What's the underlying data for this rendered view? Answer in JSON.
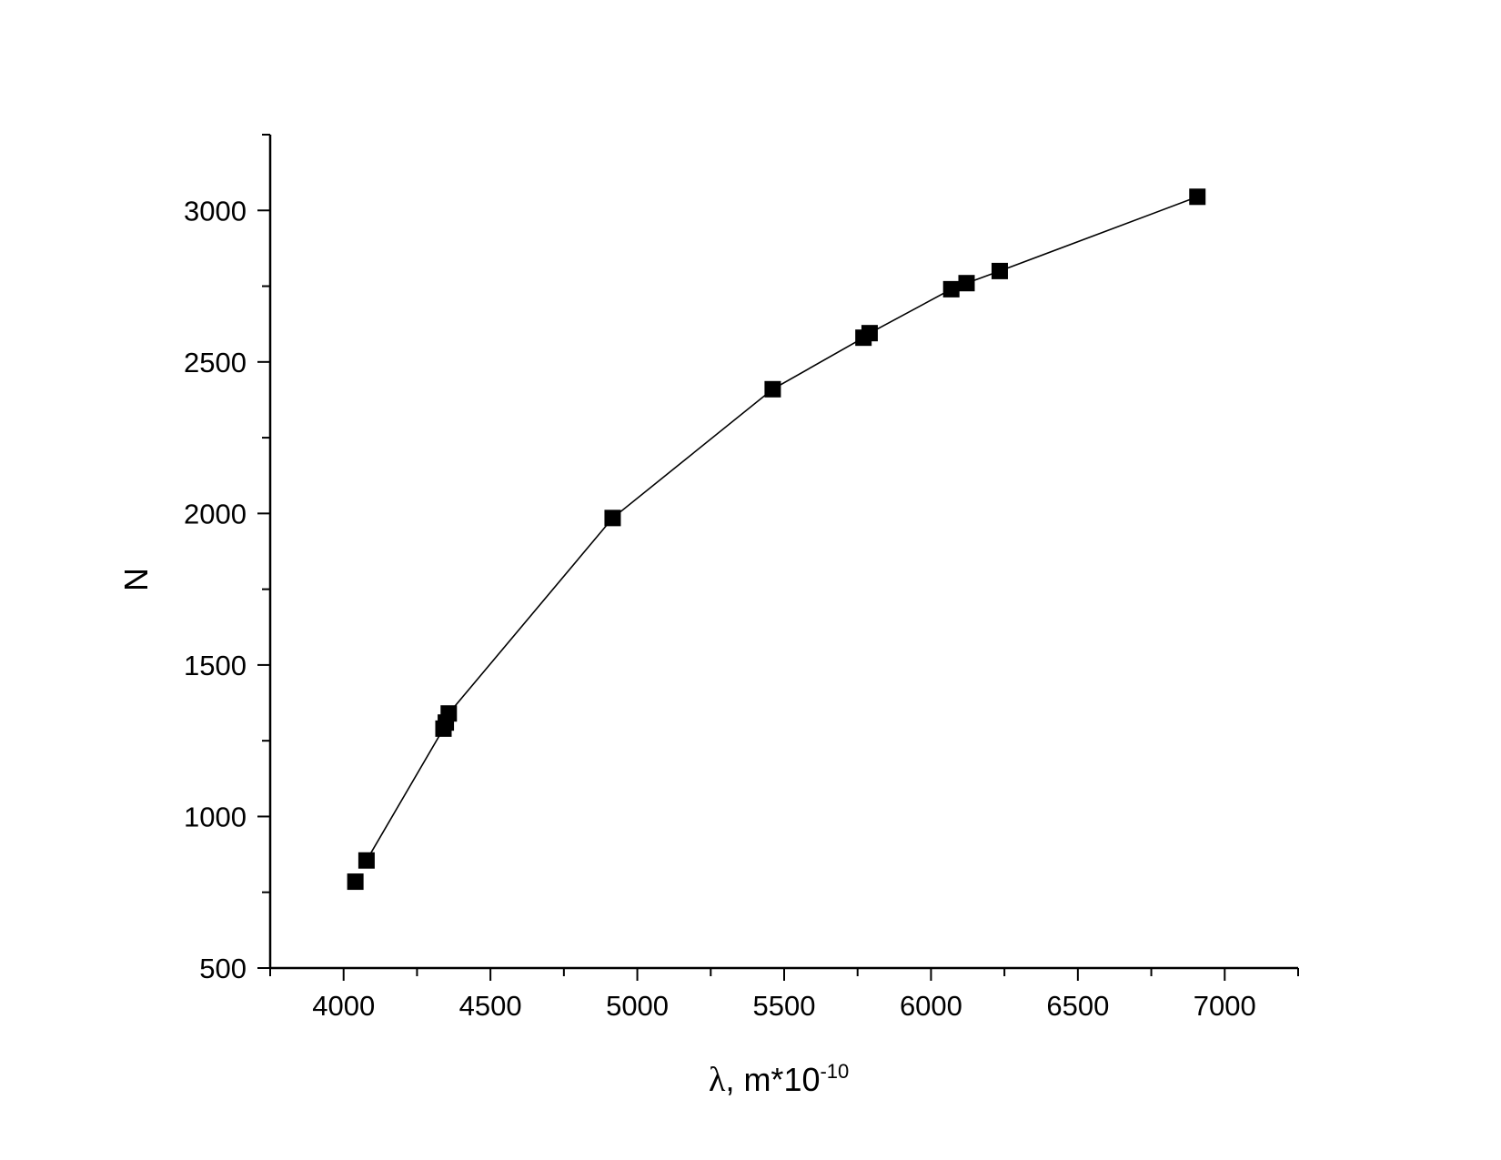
{
  "chart_data": {
    "type": "line",
    "series": [
      {
        "x": [
          4040,
          4078,
          4340,
          4348,
          4358,
          4916,
          5461,
          5770,
          5791,
          6069,
          6121,
          6234,
          6907
        ],
        "y": [
          785,
          855,
          1290,
          1310,
          1340,
          1985,
          2410,
          2580,
          2595,
          2740,
          2760,
          2800,
          3045
        ]
      }
    ],
    "line_excludes_first_point": true,
    "marker": "square",
    "color": "#000000",
    "xlim": [
      3750,
      7250
    ],
    "ylim": [
      500,
      3250
    ],
    "xticks": [
      4000,
      4500,
      5000,
      5500,
      6000,
      6500,
      7000
    ],
    "yticks": [
      500,
      1000,
      1500,
      2000,
      2500,
      3000
    ],
    "xlabel_symbol": "λ",
    "xlabel_text": ", m*10",
    "xlabel_exponent": "-10",
    "ylabel": "N",
    "grid": false
  }
}
